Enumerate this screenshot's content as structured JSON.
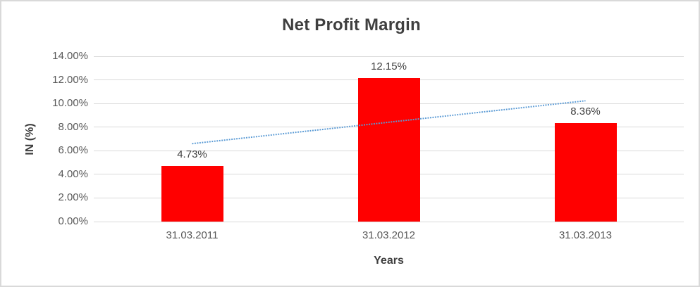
{
  "chart_data": {
    "type": "bar",
    "title": "Net Profit Margin",
    "xlabel": "Years",
    "ylabel": "IN (%)",
    "categories": [
      "31.03.2011",
      "31.03.2012",
      "31.03.2013"
    ],
    "values": [
      4.73,
      12.15,
      8.36
    ],
    "data_labels": [
      "4.73%",
      "12.15%",
      "8.36%"
    ],
    "y_ticks": [
      0,
      2,
      4,
      6,
      8,
      10,
      12,
      14
    ],
    "y_tick_labels": [
      "0.00%",
      "2.00%",
      "4.00%",
      "6.00%",
      "8.00%",
      "10.00%",
      "12.00%",
      "14.00%"
    ],
    "ylim": [
      0,
      14
    ],
    "grid": true,
    "legend": "none",
    "bar_color": "#ff0000",
    "label_color": "#404040",
    "tick_color": "#595959",
    "gridline_color": "#d9d9d9",
    "trendline": {
      "color": "#5b9bd5",
      "style": "dotted",
      "start_value": 6.6,
      "end_value": 10.23
    }
  }
}
